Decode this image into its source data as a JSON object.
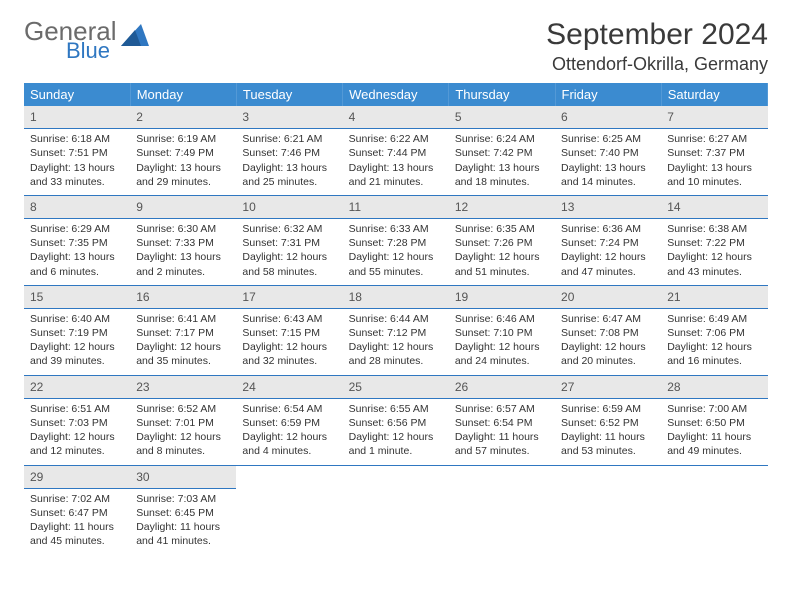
{
  "logo": {
    "part1": "General",
    "part2": "Blue",
    "triangle_color": "#2f77c1"
  },
  "title": "September 2024",
  "location": "Ottendorf-Okrilla, Germany",
  "header_bg": "#3b8bd0",
  "divider_color": "#2f77c1",
  "daynum_bg": "#e8e8e8",
  "weekdays": [
    "Sunday",
    "Monday",
    "Tuesday",
    "Wednesday",
    "Thursday",
    "Friday",
    "Saturday"
  ],
  "weeks": [
    [
      {
        "n": "1",
        "sr": "Sunrise: 6:18 AM",
        "ss": "Sunset: 7:51 PM",
        "d1": "Daylight: 13 hours",
        "d2": "and 33 minutes."
      },
      {
        "n": "2",
        "sr": "Sunrise: 6:19 AM",
        "ss": "Sunset: 7:49 PM",
        "d1": "Daylight: 13 hours",
        "d2": "and 29 minutes."
      },
      {
        "n": "3",
        "sr": "Sunrise: 6:21 AM",
        "ss": "Sunset: 7:46 PM",
        "d1": "Daylight: 13 hours",
        "d2": "and 25 minutes."
      },
      {
        "n": "4",
        "sr": "Sunrise: 6:22 AM",
        "ss": "Sunset: 7:44 PM",
        "d1": "Daylight: 13 hours",
        "d2": "and 21 minutes."
      },
      {
        "n": "5",
        "sr": "Sunrise: 6:24 AM",
        "ss": "Sunset: 7:42 PM",
        "d1": "Daylight: 13 hours",
        "d2": "and 18 minutes."
      },
      {
        "n": "6",
        "sr": "Sunrise: 6:25 AM",
        "ss": "Sunset: 7:40 PM",
        "d1": "Daylight: 13 hours",
        "d2": "and 14 minutes."
      },
      {
        "n": "7",
        "sr": "Sunrise: 6:27 AM",
        "ss": "Sunset: 7:37 PM",
        "d1": "Daylight: 13 hours",
        "d2": "and 10 minutes."
      }
    ],
    [
      {
        "n": "8",
        "sr": "Sunrise: 6:29 AM",
        "ss": "Sunset: 7:35 PM",
        "d1": "Daylight: 13 hours",
        "d2": "and 6 minutes."
      },
      {
        "n": "9",
        "sr": "Sunrise: 6:30 AM",
        "ss": "Sunset: 7:33 PM",
        "d1": "Daylight: 13 hours",
        "d2": "and 2 minutes."
      },
      {
        "n": "10",
        "sr": "Sunrise: 6:32 AM",
        "ss": "Sunset: 7:31 PM",
        "d1": "Daylight: 12 hours",
        "d2": "and 58 minutes."
      },
      {
        "n": "11",
        "sr": "Sunrise: 6:33 AM",
        "ss": "Sunset: 7:28 PM",
        "d1": "Daylight: 12 hours",
        "d2": "and 55 minutes."
      },
      {
        "n": "12",
        "sr": "Sunrise: 6:35 AM",
        "ss": "Sunset: 7:26 PM",
        "d1": "Daylight: 12 hours",
        "d2": "and 51 minutes."
      },
      {
        "n": "13",
        "sr": "Sunrise: 6:36 AM",
        "ss": "Sunset: 7:24 PM",
        "d1": "Daylight: 12 hours",
        "d2": "and 47 minutes."
      },
      {
        "n": "14",
        "sr": "Sunrise: 6:38 AM",
        "ss": "Sunset: 7:22 PM",
        "d1": "Daylight: 12 hours",
        "d2": "and 43 minutes."
      }
    ],
    [
      {
        "n": "15",
        "sr": "Sunrise: 6:40 AM",
        "ss": "Sunset: 7:19 PM",
        "d1": "Daylight: 12 hours",
        "d2": "and 39 minutes."
      },
      {
        "n": "16",
        "sr": "Sunrise: 6:41 AM",
        "ss": "Sunset: 7:17 PM",
        "d1": "Daylight: 12 hours",
        "d2": "and 35 minutes."
      },
      {
        "n": "17",
        "sr": "Sunrise: 6:43 AM",
        "ss": "Sunset: 7:15 PM",
        "d1": "Daylight: 12 hours",
        "d2": "and 32 minutes."
      },
      {
        "n": "18",
        "sr": "Sunrise: 6:44 AM",
        "ss": "Sunset: 7:12 PM",
        "d1": "Daylight: 12 hours",
        "d2": "and 28 minutes."
      },
      {
        "n": "19",
        "sr": "Sunrise: 6:46 AM",
        "ss": "Sunset: 7:10 PM",
        "d1": "Daylight: 12 hours",
        "d2": "and 24 minutes."
      },
      {
        "n": "20",
        "sr": "Sunrise: 6:47 AM",
        "ss": "Sunset: 7:08 PM",
        "d1": "Daylight: 12 hours",
        "d2": "and 20 minutes."
      },
      {
        "n": "21",
        "sr": "Sunrise: 6:49 AM",
        "ss": "Sunset: 7:06 PM",
        "d1": "Daylight: 12 hours",
        "d2": "and 16 minutes."
      }
    ],
    [
      {
        "n": "22",
        "sr": "Sunrise: 6:51 AM",
        "ss": "Sunset: 7:03 PM",
        "d1": "Daylight: 12 hours",
        "d2": "and 12 minutes."
      },
      {
        "n": "23",
        "sr": "Sunrise: 6:52 AM",
        "ss": "Sunset: 7:01 PM",
        "d1": "Daylight: 12 hours",
        "d2": "and 8 minutes."
      },
      {
        "n": "24",
        "sr": "Sunrise: 6:54 AM",
        "ss": "Sunset: 6:59 PM",
        "d1": "Daylight: 12 hours",
        "d2": "and 4 minutes."
      },
      {
        "n": "25",
        "sr": "Sunrise: 6:55 AM",
        "ss": "Sunset: 6:56 PM",
        "d1": "Daylight: 12 hours",
        "d2": "and 1 minute."
      },
      {
        "n": "26",
        "sr": "Sunrise: 6:57 AM",
        "ss": "Sunset: 6:54 PM",
        "d1": "Daylight: 11 hours",
        "d2": "and 57 minutes."
      },
      {
        "n": "27",
        "sr": "Sunrise: 6:59 AM",
        "ss": "Sunset: 6:52 PM",
        "d1": "Daylight: 11 hours",
        "d2": "and 53 minutes."
      },
      {
        "n": "28",
        "sr": "Sunrise: 7:00 AM",
        "ss": "Sunset: 6:50 PM",
        "d1": "Daylight: 11 hours",
        "d2": "and 49 minutes."
      }
    ],
    [
      {
        "n": "29",
        "sr": "Sunrise: 7:02 AM",
        "ss": "Sunset: 6:47 PM",
        "d1": "Daylight: 11 hours",
        "d2": "and 45 minutes."
      },
      {
        "n": "30",
        "sr": "Sunrise: 7:03 AM",
        "ss": "Sunset: 6:45 PM",
        "d1": "Daylight: 11 hours",
        "d2": "and 41 minutes."
      },
      null,
      null,
      null,
      null,
      null
    ]
  ]
}
